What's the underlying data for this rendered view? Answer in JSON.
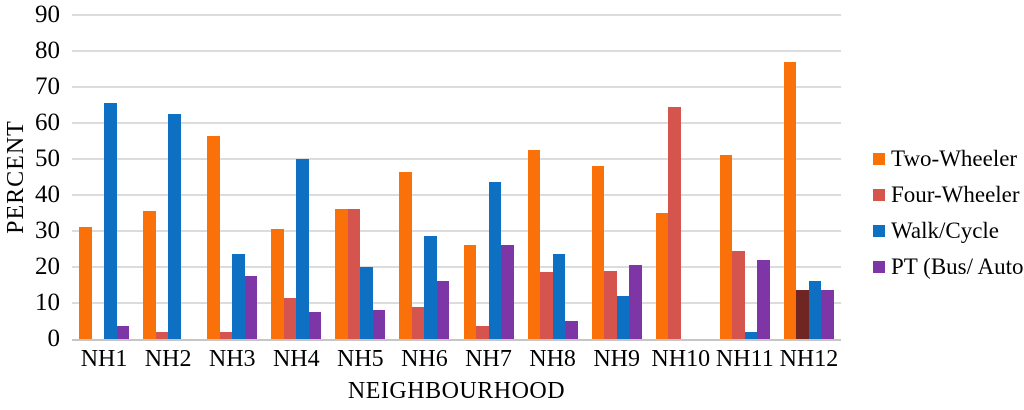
{
  "figure": {
    "background": "#FFFFFF",
    "grid_color": "#DCDCDC",
    "axis_line_color": "#C6C6C6",
    "text_color": "#000000"
  },
  "chart_data": {
    "type": "bar",
    "title": "",
    "xlabel": "NEIGHBOURHOOD",
    "ylabel": "PERCENT",
    "ylim": [
      0,
      90
    ],
    "ytick_step": 10,
    "yticks": [
      0,
      10,
      20,
      30,
      40,
      50,
      60,
      70,
      80,
      90
    ],
    "grid": "horizontal",
    "legend_position": "right",
    "categories": [
      "NH1",
      "NH2",
      "NH3",
      "NH4",
      "NH5",
      "NH6",
      "NH7",
      "NH8",
      "NH9",
      "NH10",
      "NH11",
      "NH12"
    ],
    "series": [
      {
        "name": "Two-Wheeler",
        "color": "#FB7109",
        "values": [
          31,
          35.5,
          56.5,
          30.5,
          36,
          46.5,
          26,
          52.5,
          48,
          35,
          51,
          77
        ]
      },
      {
        "name": "Four-Wheeler",
        "color": "#D5544E",
        "values": [
          0,
          2,
          2,
          11.5,
          36,
          9,
          3.5,
          18.5,
          19,
          64.5,
          24.5,
          13.5
        ]
      },
      {
        "name": "Walk/Cycle",
        "color": "#0D70C2",
        "values": [
          65.5,
          62.5,
          23.5,
          50,
          20,
          28.5,
          43.5,
          23.5,
          12,
          0,
          2,
          16
        ]
      },
      {
        "name": "PT (Bus/ Auto)",
        "color": "#7E35A5",
        "values": [
          3.5,
          0,
          17.5,
          7.5,
          8,
          16,
          26,
          5,
          20.5,
          0,
          22,
          13.5
        ]
      }
    ],
    "color_overrides": [
      {
        "series": "Four-Wheeler",
        "category": "NH12",
        "color": "#6F2522"
      }
    ]
  }
}
